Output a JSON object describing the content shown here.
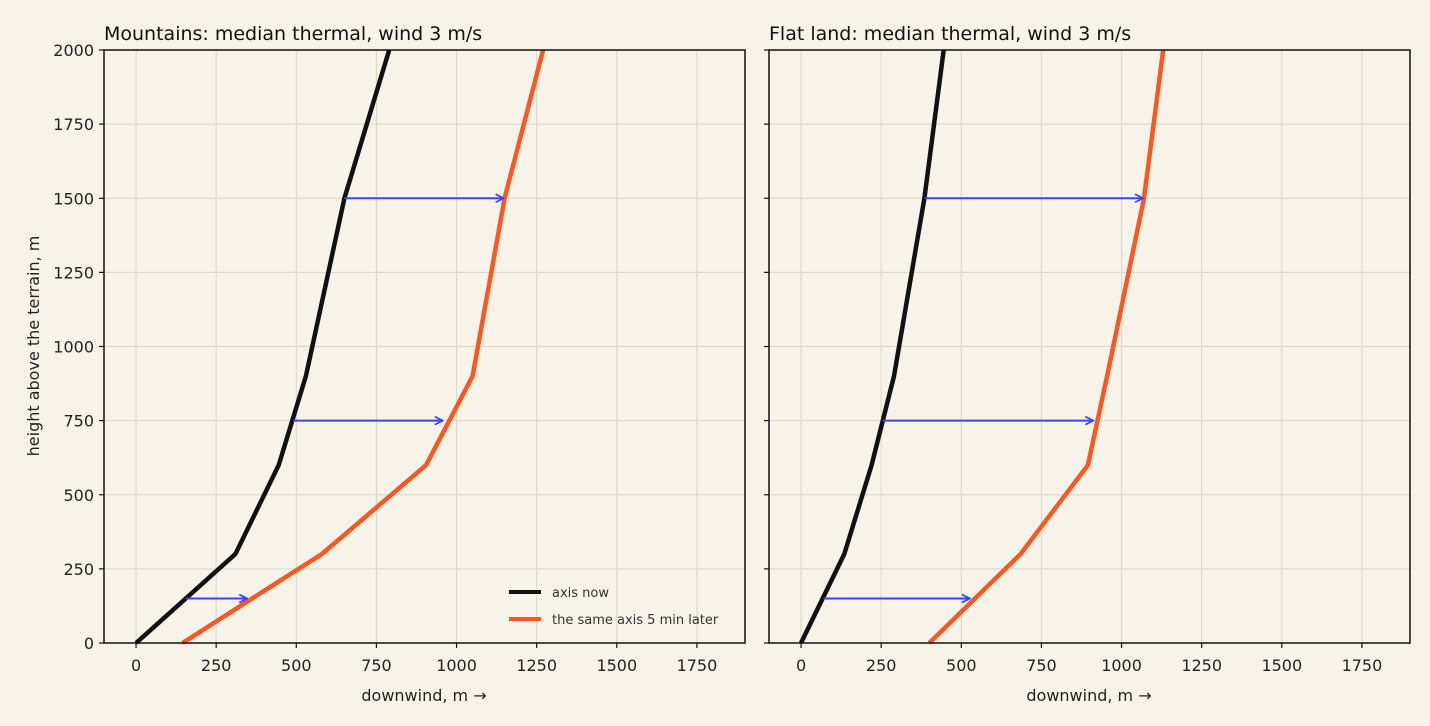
{
  "chart_data": [
    {
      "type": "line",
      "title": "Mountains: median thermal, wind 3 m/s",
      "xlabel": "downwind, m →",
      "ylabel": "height above the terrain, m",
      "xlim": [
        -100,
        1900
      ],
      "ylim": [
        0,
        2000
      ],
      "xticks": [
        0,
        250,
        500,
        750,
        1000,
        1250,
        1500,
        1750
      ],
      "yticks": [
        0,
        250,
        500,
        750,
        1000,
        1250,
        1500,
        1750,
        2000
      ],
      "grid": true,
      "legend": "bottom-right",
      "colors": {
        "now": "#111111",
        "later": "#ff5722",
        "arrow": "#3a46f0"
      },
      "series": [
        {
          "name": "axis now",
          "x": [
            0,
            310,
            445,
            530,
            650,
            790
          ],
          "y": [
            0,
            300,
            600,
            900,
            1500,
            2000
          ]
        },
        {
          "name": "the same axis 5 min later",
          "x": [
            145,
            580,
            905,
            1050,
            1150,
            1270
          ],
          "y": [
            0,
            300,
            600,
            900,
            1500,
            2000
          ]
        }
      ],
      "arrows": [
        {
          "x_from": 155,
          "x_to": 350,
          "y": 150
        },
        {
          "x_from": 490,
          "x_to": 960,
          "y": 750
        },
        {
          "x_from": 650,
          "x_to": 1150,
          "y": 1500
        }
      ]
    },
    {
      "type": "line",
      "title": "Flat land: median thermal, wind 3 m/s",
      "xlabel": "downwind, m →",
      "ylabel": "",
      "xlim": [
        -100,
        1900
      ],
      "ylim": [
        0,
        2000
      ],
      "xticks": [
        0,
        250,
        500,
        750,
        1000,
        1250,
        1500,
        1750
      ],
      "yticks": [
        0,
        250,
        500,
        750,
        1000,
        1250,
        1500,
        1750,
        2000
      ],
      "grid": true,
      "colors": {
        "now": "#111111",
        "later": "#ff5722",
        "arrow": "#3a46f0"
      },
      "series": [
        {
          "name": "axis now",
          "x": [
            0,
            135,
            220,
            290,
            385,
            445
          ],
          "y": [
            0,
            300,
            600,
            900,
            1500,
            2000
          ]
        },
        {
          "name": "the same axis 5 min later",
          "x": [
            400,
            685,
            895,
            955,
            1070,
            1130
          ],
          "y": [
            0,
            300,
            600,
            900,
            1500,
            2000
          ]
        }
      ],
      "arrows": [
        {
          "x_from": 70,
          "x_to": 530,
          "y": 150
        },
        {
          "x_from": 255,
          "x_to": 915,
          "y": 750
        },
        {
          "x_from": 385,
          "x_to": 1070,
          "y": 1500
        }
      ]
    }
  ]
}
